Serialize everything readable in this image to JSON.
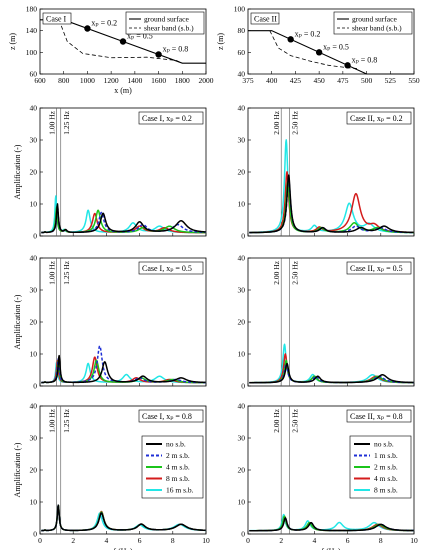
{
  "chart_data": [
    {
      "type": "line",
      "panel": "geometry",
      "case_label": "Case I",
      "xlabel": "x (m)",
      "ylabel": "z (m)",
      "xlim": [
        600,
        2000
      ],
      "ylim": [
        60,
        180
      ],
      "xticks": [
        600,
        800,
        1000,
        1200,
        1400,
        1600,
        1800,
        2000
      ],
      "yticks": [
        60,
        100,
        140,
        180
      ],
      "legend": [
        "ground surface",
        "shear band (s.b.)"
      ],
      "ground": {
        "x": [
          600,
          800,
          1800,
          2000
        ],
        "y": [
          160,
          160,
          80,
          80
        ]
      },
      "shear_band": {
        "x": [
          760,
          830,
          960,
          1200,
          1500,
          1750,
          1800
        ],
        "y": [
          160,
          120,
          98,
          90,
          91,
          85,
          80
        ]
      },
      "points": [
        {
          "label": "xₚ = 0.2",
          "x": 1000,
          "y": 144
        },
        {
          "label": "xₚ = 0.5",
          "x": 1300,
          "y": 120
        },
        {
          "label": "xₚ = 0.8",
          "x": 1600,
          "y": 96
        }
      ]
    },
    {
      "type": "line",
      "panel": "geometry",
      "case_label": "Case II",
      "xlabel": "",
      "ylabel": "z (m)",
      "xlim": [
        375,
        550
      ],
      "ylim": [
        40,
        100
      ],
      "xticks": [
        375,
        400,
        425,
        450,
        475,
        500,
        525,
        550
      ],
      "yticks": [
        40,
        60,
        80,
        100
      ],
      "legend": [
        "ground surface",
        "shear band (s.b.)"
      ],
      "ground": {
        "x": [
          375,
          400,
          500,
          550
        ],
        "y": [
          80,
          80,
          40,
          40
        ]
      },
      "shear_band": {
        "x": [
          398,
          407,
          420,
          440,
          460,
          478,
          490
        ],
        "y": [
          80,
          64,
          57,
          52,
          48,
          46,
          45
        ]
      },
      "points": [
        {
          "label": "xₚ = 0.2",
          "x": 420,
          "y": 72
        },
        {
          "label": "xₚ = 0.5",
          "x": 450,
          "y": 60
        },
        {
          "label": "xₚ = 0.8",
          "x": 480,
          "y": 48
        }
      ]
    },
    {
      "type": "line",
      "panel": "amplification",
      "case": "I",
      "xr": "0.2",
      "case_label": "Case I, xₚ = 0.2",
      "vlines": [
        1.0,
        1.25
      ],
      "vline_labels": [
        "1.00 Hz",
        "1.25 Hz"
      ],
      "ylabel": "Amplification (-)",
      "xlim": [
        0,
        10
      ],
      "ylim": [
        0,
        40
      ],
      "series": [
        {
          "name": "no s.b.",
          "peaks": [
            [
              0.3,
              1.2
            ],
            [
              1.05,
              10
            ],
            [
              1.55,
              1.8
            ],
            [
              3.8,
              7
            ],
            [
              6.0,
              4.3
            ],
            [
              8.5,
              4.7
            ]
          ]
        },
        {
          "name": "2 m s.b.",
          "peaks": [
            [
              0.3,
              1.2
            ],
            [
              1.05,
              9.5
            ],
            [
              1.55,
              1.8
            ],
            [
              3.7,
              7.3
            ],
            [
              6.2,
              3.5
            ],
            [
              8.3,
              3.5
            ]
          ]
        },
        {
          "name": "4 m s.b.",
          "peaks": [
            [
              0.3,
              1.2
            ],
            [
              1.0,
              9
            ],
            [
              1.5,
              1.8
            ],
            [
              3.5,
              8
            ],
            [
              6.2,
              2.5
            ],
            [
              7.8,
              3
            ]
          ]
        },
        {
          "name": "8 m s.b.",
          "peaks": [
            [
              0.3,
              1.2
            ],
            [
              1.0,
              8.5
            ],
            [
              1.5,
              1.8
            ],
            [
              3.3,
              7
            ],
            [
              6.0,
              3
            ],
            [
              7.5,
              2.5
            ]
          ]
        },
        {
          "name": "16 m s.b.",
          "peaks": [
            [
              0.3,
              1.2
            ],
            [
              0.95,
              12.5
            ],
            [
              1.45,
              1.8
            ],
            [
              2.9,
              8
            ],
            [
              5.6,
              4
            ],
            [
              7.2,
              3
            ]
          ]
        }
      ]
    },
    {
      "type": "line",
      "panel": "amplification",
      "case": "II",
      "xr": "0.2",
      "case_label": "Case II, xₚ = 0.2",
      "vlines": [
        2.0,
        2.5
      ],
      "vline_labels": [
        "2.00 Hz",
        "2.50 Hz"
      ],
      "ylabel": "",
      "xlim": [
        0,
        10
      ],
      "ylim": [
        0,
        40
      ],
      "series": [
        {
          "name": "no s.b.",
          "peaks": [
            [
              2.45,
              19
            ],
            [
              4.5,
              2.5
            ],
            [
              6.8,
              2.5
            ],
            [
              8.2,
              3
            ]
          ]
        },
        {
          "name": "1 m s.b.",
          "peaks": [
            [
              2.45,
              18
            ],
            [
              4.5,
              2.5
            ],
            [
              6.5,
              3
            ],
            [
              8.0,
              2.5
            ]
          ]
        },
        {
          "name": "2 m s.b.",
          "peaks": [
            [
              2.4,
              17
            ],
            [
              4.4,
              2.5
            ],
            [
              6.4,
              4
            ],
            [
              7.8,
              2.5
            ]
          ]
        },
        {
          "name": "4 m s.b.",
          "peaks": [
            [
              2.35,
              20
            ],
            [
              4.3,
              2.5
            ],
            [
              6.5,
              13
            ],
            [
              7.6,
              3
            ]
          ]
        },
        {
          "name": "8 m s.b.",
          "peaks": [
            [
              2.3,
              30
            ],
            [
              4.0,
              3
            ],
            [
              6.1,
              10
            ],
            [
              7.3,
              3.5
            ]
          ]
        }
      ]
    },
    {
      "type": "line",
      "panel": "amplification",
      "case": "I",
      "xr": "0.5",
      "case_label": "Case I, xₚ = 0.5",
      "vlines": [
        1.0,
        1.25
      ],
      "vline_labels": [
        "1.00 Hz",
        "1.25 Hz"
      ],
      "ylabel": "Amplification (-)",
      "xlim": [
        0,
        10
      ],
      "ylim": [
        0,
        40
      ],
      "series": [
        {
          "name": "no s.b.",
          "peaks": [
            [
              0.3,
              1.2
            ],
            [
              1.15,
              9.5
            ],
            [
              3.9,
              7.5
            ],
            [
              6.2,
              3
            ],
            [
              8.5,
              2.5
            ]
          ]
        },
        {
          "name": "2 m s.b.",
          "peaks": [
            [
              0.3,
              1.2
            ],
            [
              1.1,
              8.5
            ],
            [
              3.6,
              12.5
            ],
            [
              6.0,
              2.5
            ],
            [
              8.2,
              2
            ]
          ]
        },
        {
          "name": "4 m s.b.",
          "peaks": [
            [
              0.3,
              1.2
            ],
            [
              1.1,
              8
            ],
            [
              3.4,
              8
            ],
            [
              6.1,
              2.5
            ],
            [
              8.0,
              2
            ]
          ]
        },
        {
          "name": "8 m s.b.",
          "peaks": [
            [
              0.3,
              1.2
            ],
            [
              1.05,
              8
            ],
            [
              3.3,
              9
            ],
            [
              5.8,
              2.5
            ],
            [
              7.8,
              2
            ]
          ]
        },
        {
          "name": "16 m s.b.",
          "peaks": [
            [
              0.3,
              1.2
            ],
            [
              1.0,
              7.5
            ],
            [
              2.9,
              7
            ],
            [
              5.2,
              3.5
            ],
            [
              7.2,
              3
            ]
          ]
        }
      ]
    },
    {
      "type": "line",
      "panel": "amplification",
      "case": "II",
      "xr": "0.5",
      "case_label": "Case II, xₚ = 0.5",
      "vlines": [
        2.0,
        2.5
      ],
      "vline_labels": [
        "2.00 Hz",
        "2.50 Hz"
      ],
      "ylabel": "",
      "xlim": [
        0,
        10
      ],
      "ylim": [
        0,
        40
      ],
      "series": [
        {
          "name": "no s.b.",
          "peaks": [
            [
              2.35,
              7
            ],
            [
              4.2,
              3
            ],
            [
              8.1,
              3.5
            ]
          ]
        },
        {
          "name": "1 m s.b.",
          "peaks": [
            [
              2.3,
              7
            ],
            [
              4.1,
              3
            ],
            [
              7.9,
              3
            ]
          ]
        },
        {
          "name": "2 m s.b.",
          "peaks": [
            [
              2.3,
              8
            ],
            [
              4.0,
              3
            ],
            [
              7.8,
              3
            ]
          ]
        },
        {
          "name": "4 m s.b.",
          "peaks": [
            [
              2.25,
              10
            ],
            [
              4.0,
              3
            ],
            [
              7.7,
              3
            ]
          ]
        },
        {
          "name": "8 m s.b.",
          "peaks": [
            [
              2.2,
              13
            ],
            [
              3.9,
              3.5
            ],
            [
              7.5,
              3.5
            ]
          ]
        }
      ]
    },
    {
      "type": "line",
      "panel": "amplification",
      "case": "I",
      "xr": "0.8",
      "case_label": "Case I, xₚ = 0.8",
      "vlines": [
        1.0,
        1.25
      ],
      "vline_labels": [
        "1.00 Hz",
        "1.25 Hz"
      ],
      "ylabel": "Amplification (-)",
      "xlabel": "f (Hz)",
      "xlim": [
        0,
        10
      ],
      "ylim": [
        0,
        40
      ],
      "xticks": [
        0,
        2,
        4,
        6,
        8,
        10
      ],
      "yticks": [
        0,
        10,
        20,
        30,
        40
      ],
      "series": [
        {
          "name": "no s.b.",
          "peaks": [
            [
              0.3,
              1.2
            ],
            [
              1.1,
              9
            ],
            [
              3.7,
              6.5
            ],
            [
              6.1,
              3
            ],
            [
              8.5,
              3
            ]
          ]
        },
        {
          "name": "2 m s.b.",
          "peaks": [
            [
              0.3,
              1.2
            ],
            [
              1.1,
              9
            ],
            [
              3.7,
              6.5
            ],
            [
              6.1,
              3
            ],
            [
              8.5,
              3
            ]
          ]
        },
        {
          "name": "4 m s.b.",
          "peaks": [
            [
              0.3,
              1.2
            ],
            [
              1.1,
              9
            ],
            [
              3.7,
              6.8
            ],
            [
              6.1,
              3
            ],
            [
              8.5,
              3
            ]
          ]
        },
        {
          "name": "8 m s.b.",
          "peaks": [
            [
              0.3,
              1.2
            ],
            [
              1.1,
              9
            ],
            [
              3.7,
              7
            ],
            [
              6.1,
              3
            ],
            [
              8.5,
              3
            ]
          ]
        },
        {
          "name": "16 m s.b.",
          "peaks": [
            [
              0.3,
              1.2
            ],
            [
              1.1,
              9
            ],
            [
              3.6,
              6.5
            ],
            [
              6.0,
              2.8
            ],
            [
              8.4,
              3
            ]
          ]
        }
      ]
    },
    {
      "type": "line",
      "panel": "amplification",
      "case": "II",
      "xr": "0.8",
      "case_label": "Case II, xₚ = 0.8",
      "vlines": [
        2.0,
        2.5
      ],
      "vline_labels": [
        "2.00 Hz",
        "2.50 Hz"
      ],
      "ylabel": "",
      "xlabel": "f (Hz)",
      "xlim": [
        0,
        10
      ],
      "ylim": [
        0,
        40
      ],
      "xticks": [
        0,
        2,
        4,
        6,
        8,
        10
      ],
      "yticks": [
        0,
        10,
        20,
        30,
        40
      ],
      "series": [
        {
          "name": "no s.b.",
          "peaks": [
            [
              2.25,
              5
            ],
            [
              3.8,
              3.5
            ],
            [
              8.0,
              3
            ]
          ]
        },
        {
          "name": "1 m s.b.",
          "peaks": [
            [
              2.25,
              5
            ],
            [
              3.8,
              3.5
            ],
            [
              8.0,
              3
            ]
          ]
        },
        {
          "name": "2 m s.b.",
          "peaks": [
            [
              2.2,
              5.5
            ],
            [
              3.7,
              3.5
            ],
            [
              7.9,
              3
            ]
          ]
        },
        {
          "name": "4 m s.b.",
          "peaks": [
            [
              2.2,
              5.5
            ],
            [
              3.7,
              3.5
            ],
            [
              7.8,
              3
            ]
          ]
        },
        {
          "name": "8 m s.b.",
          "peaks": [
            [
              2.15,
              6
            ],
            [
              3.6,
              4
            ],
            [
              5.5,
              3.5
            ],
            [
              7.6,
              3.5
            ]
          ]
        }
      ]
    }
  ],
  "legend_case1": [
    "no s.b.",
    "2 m s.b.",
    "4 m s.b.",
    "8 m s.b.",
    "16 m s.b."
  ],
  "legend_case2": [
    "no s.b.",
    "1 m s.b.",
    "2 m s.b.",
    "4 m s.b.",
    "8 m s.b."
  ],
  "series_colors": [
    "#000000",
    "#1f2fd6",
    "#1bc41b",
    "#d41c1c",
    "#22e6e6"
  ],
  "series_dash": [
    false,
    true,
    false,
    false,
    false
  ]
}
